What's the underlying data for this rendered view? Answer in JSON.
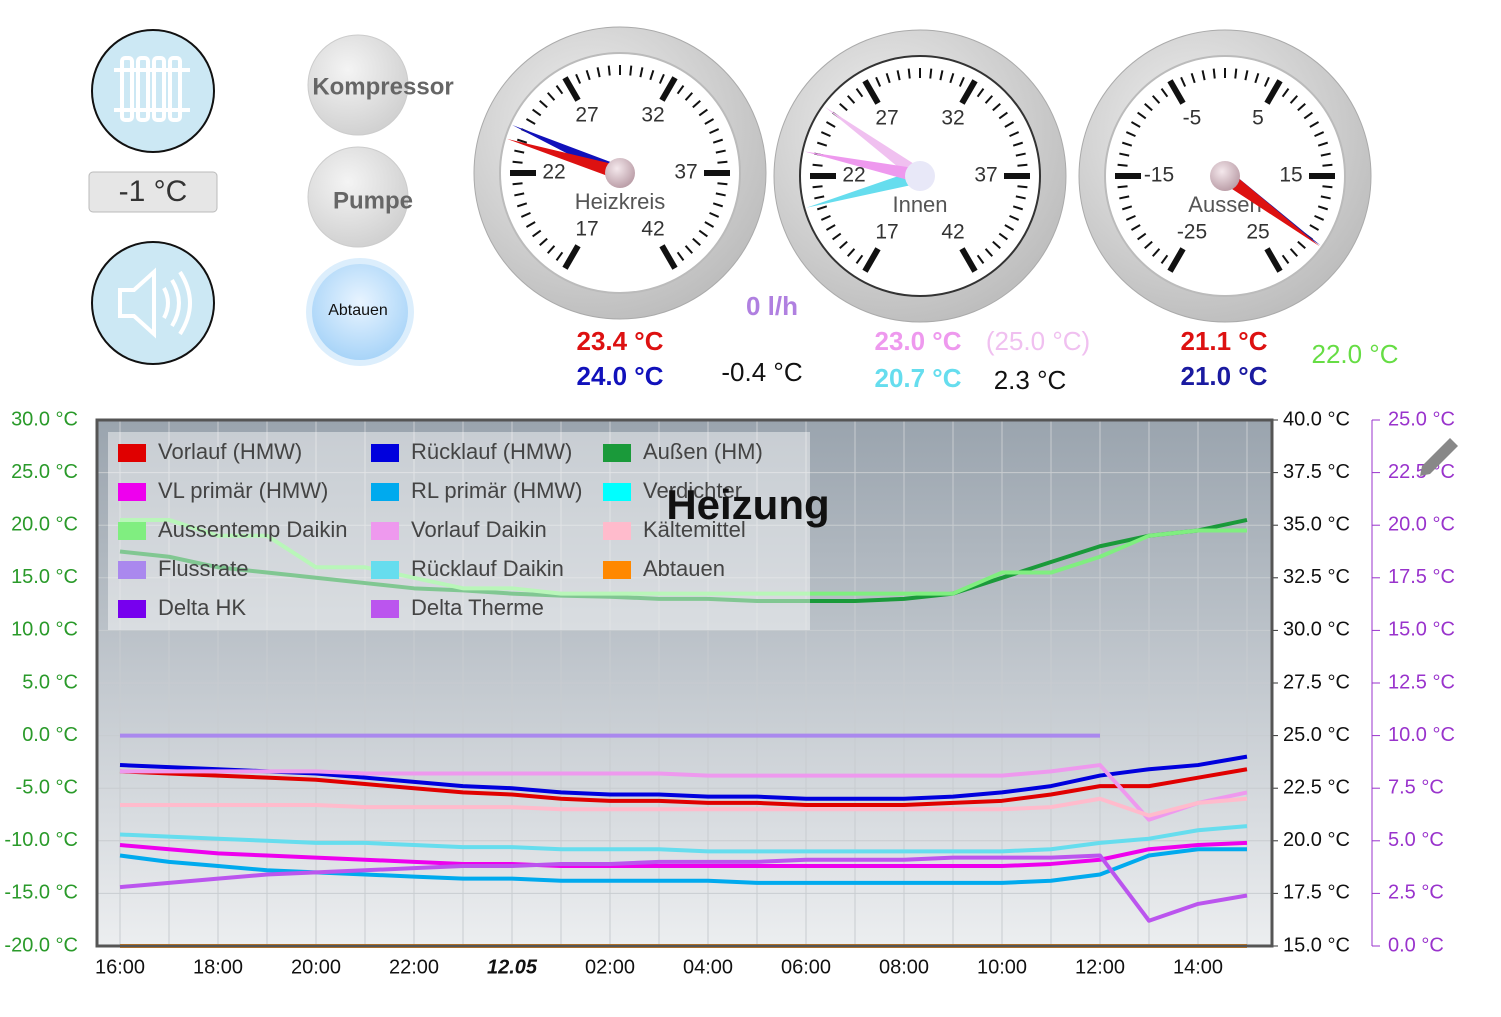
{
  "outside_box": "-1 °C",
  "buttons": [
    "Kompressor",
    "Pumpe",
    "Abtauen"
  ],
  "gauges": [
    {
      "name": "Heizkreis",
      "scale": [
        17,
        22,
        27,
        32,
        37,
        42
      ],
      "needles": [
        {
          "value": 23.4,
          "label": "23.4 °C",
          "color": "#dd1111"
        },
        {
          "value": 24.0,
          "label": "24.0 °C",
          "color": "#1111bb"
        }
      ]
    },
    {
      "name": "Innen",
      "scale": [
        17,
        22,
        27,
        32,
        37,
        42
      ],
      "needles": [
        {
          "value": 23.0,
          "label": "23.0 °C",
          "color": "#ee99ee"
        },
        {
          "value": 20.7,
          "label": "20.7 °C",
          "color": "#66ddee"
        },
        {
          "value": 25.0,
          "label": "(25.0 °C)",
          "color": "#f0c0f0"
        }
      ]
    },
    {
      "name": "Aussen",
      "scale": [
        -25,
        -15,
        -5,
        5,
        15,
        25
      ],
      "needles": [
        {
          "value": 21.1,
          "label": "21.1 °C",
          "color": "#dd1111"
        },
        {
          "value": 21.0,
          "label": "21.0 °C",
          "color": "#1a1aa0"
        }
      ]
    }
  ],
  "readouts": [
    "0 l/h",
    "-0.4 °C",
    "2.3 °C",
    "22.0 °C"
  ],
  "chart_data": {
    "type": "line",
    "title": "Heizung",
    "grid": true,
    "categories": [
      "16:00",
      null,
      "18:00",
      null,
      "20:00",
      null,
      "22:00",
      null,
      "12.05",
      null,
      "02:00",
      null,
      "04:00",
      null,
      "06:00",
      null,
      "08:00",
      null,
      "10:00",
      null,
      "12:00",
      null,
      "14:00",
      null
    ],
    "ylim": [
      -20,
      30
    ],
    "yticks": [
      {
        "value": 30,
        "label": "30.0 °C"
      },
      {
        "value": 25,
        "label": "25.0 °C"
      },
      {
        "value": 20,
        "label": "20.0 °C"
      },
      {
        "value": 15,
        "label": "15.0 °C"
      },
      {
        "value": 10,
        "label": "10.0 °C"
      },
      {
        "value": 5,
        "label": "5.0 °C"
      },
      {
        "value": 0,
        "label": "0.0 °C"
      },
      {
        "value": -5,
        "label": "-5.0 °C"
      },
      {
        "value": -10,
        "label": "-10.0 °C"
      },
      {
        "value": -15,
        "label": "-15.0 °C"
      },
      {
        "value": -20,
        "label": "-20.0 °C"
      }
    ],
    "y2lim": [
      15,
      40
    ],
    "y2ticks": [
      {
        "value": 40,
        "label": "40.0 °C"
      },
      {
        "value": 37.5,
        "label": "37.5 °C"
      },
      {
        "value": 35,
        "label": "35.0 °C"
      },
      {
        "value": 32.5,
        "label": "32.5 °C"
      },
      {
        "value": 30,
        "label": "30.0 °C"
      },
      {
        "value": 27.5,
        "label": "27.5 °C"
      },
      {
        "value": 25,
        "label": "25.0 °C"
      },
      {
        "value": 22.5,
        "label": "22.5 °C"
      },
      {
        "value": 20,
        "label": "20.0 °C"
      },
      {
        "value": 17.5,
        "label": "17.5 °C"
      },
      {
        "value": 15,
        "label": "15.0 °C"
      }
    ],
    "y3lim": [
      0,
      25
    ],
    "y3ticks": [
      {
        "value": 25,
        "label": "25.0 °C"
      },
      {
        "value": 22.5,
        "label": "22.5 °C"
      },
      {
        "value": 20,
        "label": "20.0 °C"
      },
      {
        "value": 17.5,
        "label": "17.5 °C"
      },
      {
        "value": 15,
        "label": "15.0 °C"
      },
      {
        "value": 12.5,
        "label": "12.5 °C"
      },
      {
        "value": 10,
        "label": "10.0 °C"
      },
      {
        "value": 7.5,
        "label": "7.5 °C"
      },
      {
        "value": 5,
        "label": "5.0 °C"
      },
      {
        "value": 2.5,
        "label": "2.5 °C"
      },
      {
        "value": 0,
        "label": "0.0 °C"
      }
    ],
    "series": [
      {
        "name": "Vorlauf (HMW)",
        "color": "#e00000",
        "axis": "y2",
        "values": [
          23.3,
          23.2,
          23.1,
          23.0,
          22.9,
          22.7,
          22.5,
          22.3,
          22.2,
          22.0,
          21.9,
          21.9,
          21.8,
          21.8,
          21.7,
          21.7,
          21.7,
          21.8,
          21.9,
          22.2,
          22.6,
          22.6,
          23.0,
          23.4
        ]
      },
      {
        "name": "Rücklauf (HMW)",
        "color": "#0000dd",
        "axis": "y2",
        "values": [
          23.6,
          23.5,
          23.4,
          23.3,
          23.2,
          23.0,
          22.8,
          22.6,
          22.5,
          22.3,
          22.2,
          22.2,
          22.1,
          22.1,
          22.0,
          22.0,
          22.0,
          22.1,
          22.3,
          22.6,
          23.1,
          23.4,
          23.6,
          24.0
        ]
      },
      {
        "name": "Außen (HM)",
        "color": "#1a9a3a",
        "values": [
          17.5,
          17,
          16,
          15.5,
          15,
          14.5,
          14,
          13.8,
          13.5,
          13.3,
          13.2,
          13,
          13,
          12.8,
          12.8,
          12.8,
          13,
          13.5,
          15,
          16.5,
          18,
          19,
          19.5,
          20.5
        ]
      },
      {
        "name": "VL primär (HMW)",
        "color": "#ee00ee",
        "axis": "y2",
        "values": [
          19.8,
          19.6,
          19.4,
          19.3,
          19.2,
          19.1,
          19.0,
          18.9,
          18.9,
          18.8,
          18.8,
          18.8,
          18.8,
          18.8,
          18.8,
          18.8,
          18.8,
          18.8,
          18.8,
          18.9,
          19.1,
          19.6,
          19.8,
          19.9
        ]
      },
      {
        "name": "RL primär (HMW)",
        "color": "#00aaee",
        "axis": "y2",
        "values": [
          19.3,
          19.0,
          18.8,
          18.6,
          18.5,
          18.4,
          18.3,
          18.2,
          18.2,
          18.1,
          18.1,
          18.1,
          18.1,
          18.0,
          18.0,
          18.0,
          18.0,
          18.0,
          18.0,
          18.1,
          18.4,
          19.3,
          19.6,
          19.6
        ]
      },
      {
        "name": "Verdichter",
        "color": "#00ffff",
        "values": [
          null,
          null,
          null,
          null,
          null,
          null,
          null,
          null,
          null,
          null,
          null,
          null,
          null,
          null,
          null,
          null,
          null,
          null,
          null,
          null,
          null,
          null,
          null,
          null
        ]
      },
      {
        "name": "Aussentemp Daikin",
        "color": "#80ee80",
        "values": [
          20.5,
          20.5,
          19,
          19,
          16,
          16,
          15,
          14,
          14,
          13.5,
          13.5,
          13.5,
          13.5,
          13.5,
          13.5,
          13.5,
          13.5,
          13.5,
          15.5,
          15.5,
          17,
          19,
          19.5,
          19.5
        ]
      },
      {
        "name": "Vorlauf Daikin",
        "color": "#ee99ee",
        "axis": "y2",
        "values": [
          23.3,
          23.3,
          23.3,
          23.3,
          23.3,
          23.2,
          23.2,
          23.2,
          23.2,
          23.2,
          23.2,
          23.2,
          23.1,
          23.1,
          23.1,
          23.1,
          23.1,
          23.1,
          23.1,
          23.3,
          23.6,
          21.0,
          21.8,
          22.3
        ]
      },
      {
        "name": "Kältemittel",
        "color": "#ffbbcc",
        "axis": "y2",
        "values": [
          21.7,
          21.7,
          21.7,
          21.7,
          21.7,
          21.6,
          21.6,
          21.6,
          21.6,
          21.5,
          21.5,
          21.5,
          21.5,
          21.5,
          21.5,
          21.5,
          21.5,
          21.5,
          21.5,
          21.6,
          22.0,
          21.2,
          21.8,
          22.0
        ]
      },
      {
        "name": "Flussrate",
        "color": "#aa88ee",
        "values": [
          0,
          0,
          0,
          0,
          0,
          0,
          0,
          0,
          0,
          0,
          0,
          0,
          0,
          0,
          0,
          0,
          0,
          0,
          0,
          0,
          0,
          null,
          null,
          null
        ]
      },
      {
        "name": "Rücklauf Daikin",
        "color": "#66ddee",
        "axis": "y2",
        "values": [
          20.3,
          20.2,
          20.1,
          20.0,
          19.9,
          19.9,
          19.8,
          19.7,
          19.7,
          19.6,
          19.6,
          19.6,
          19.5,
          19.5,
          19.5,
          19.5,
          19.5,
          19.5,
          19.5,
          19.6,
          19.9,
          20.1,
          20.5,
          20.7
        ]
      },
      {
        "name": "Abtauen",
        "color": "#ff8800",
        "axis": "y3",
        "values": [
          0,
          0,
          0,
          0,
          0,
          0,
          0,
          0,
          0,
          0,
          0,
          0,
          0,
          0,
          0,
          0,
          0,
          0,
          0,
          0,
          0,
          0,
          0,
          0
        ]
      },
      {
        "name": "Delta HK",
        "color": "#7700ee",
        "axis": "y3",
        "values": [
          null,
          null,
          null,
          null,
          null,
          null,
          null,
          null,
          null,
          null,
          null,
          null,
          null,
          null,
          null,
          null,
          null,
          null,
          null,
          null,
          null,
          null,
          null,
          null
        ]
      },
      {
        "name": "Delta Therme",
        "color": "#bb55ee",
        "axis": "y3",
        "values": [
          2.8,
          3.0,
          3.2,
          3.4,
          3.5,
          3.6,
          3.7,
          3.8,
          3.8,
          3.9,
          3.9,
          4.0,
          4.0,
          4.0,
          4.1,
          4.1,
          4.1,
          4.2,
          4.2,
          4.2,
          4.3,
          1.2,
          2.0,
          2.4
        ]
      }
    ]
  }
}
